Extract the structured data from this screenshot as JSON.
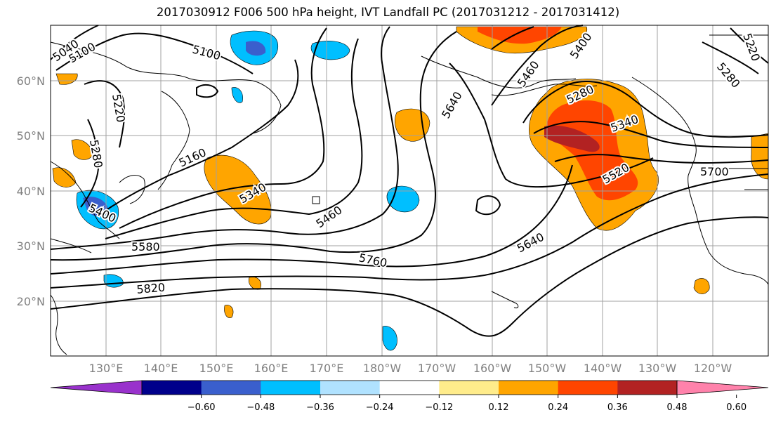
{
  "title": "2017030912 F006 500 hPa height, IVT Landfall PC (2017031212 - 2017031412)",
  "lat_labels": [
    "60°N",
    "50°N",
    "40°N",
    "30°N",
    "20°N"
  ],
  "lon_labels": [
    "130°E",
    "140°E",
    "150°E",
    "160°E",
    "170°E",
    "180°W",
    "170°W",
    "160°W",
    "150°W",
    "140°W",
    "130°W",
    "120°W"
  ],
  "colorbar": {
    "ticks": [
      "−0.60",
      "−0.48",
      "−0.36",
      "−0.24",
      "−0.12",
      "0.12",
      "0.24",
      "0.36",
      "0.48",
      "0.60"
    ],
    "colors": [
      "#9932cc",
      "#00008b",
      "#3a5fcd",
      "#00bfff",
      "#b0e2ff",
      "#ffffff",
      "#ffec8b",
      "#ffa500",
      "#ff4500",
      "#b22222",
      "#ff82ab"
    ]
  },
  "contour_labels": [
    "5040",
    "5100",
    "5100",
    "5220",
    "5280",
    "5160",
    "5400",
    "5340",
    "5460",
    "5580",
    "5760",
    "5820",
    "5640",
    "5640",
    "5460",
    "5400",
    "5280",
    "5280",
    "5340",
    "5520",
    "5700",
    "5220"
  ]
}
